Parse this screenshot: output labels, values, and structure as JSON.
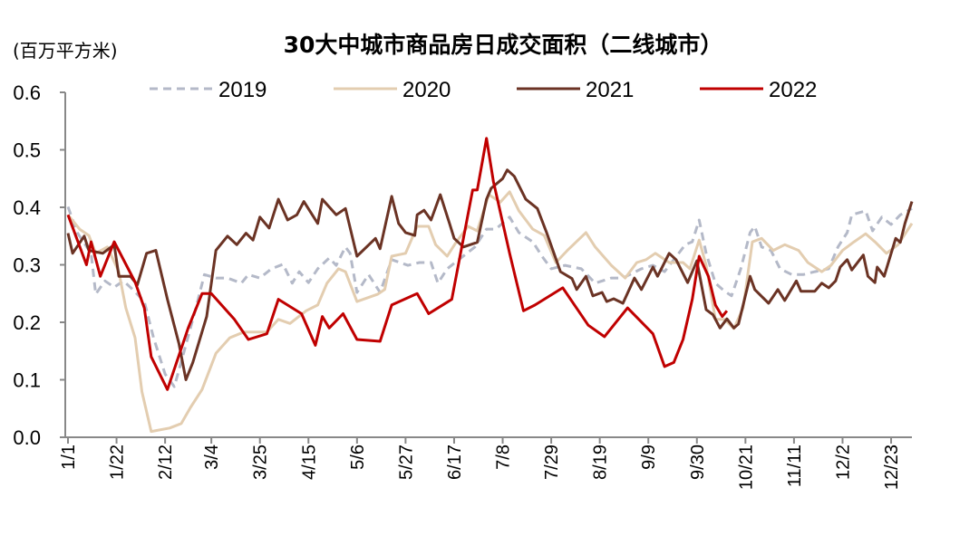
{
  "chart_data": {
    "type": "line",
    "title": "30大中城市商品房日成交面积（二线城市）",
    "ylabel": "(百万平方米)",
    "xlabel": "",
    "ylim": [
      0,
      0.6
    ],
    "xlim_day_of_year": [
      0,
      365
    ],
    "yticks": [
      "0.0",
      "0.1",
      "0.2",
      "0.3",
      "0.4",
      "0.5",
      "0.6"
    ],
    "ytick_values": [
      0,
      0.1,
      0.2,
      0.3,
      0.4,
      0.5,
      0.6
    ],
    "xticks": [
      "1/1",
      "1/22",
      "2/12",
      "3/4",
      "3/25",
      "4/15",
      "5/6",
      "5/27",
      "6/17",
      "7/8",
      "7/29",
      "8/19",
      "9/9",
      "9/30",
      "10/21",
      "11/11",
      "12/2",
      "12/23"
    ],
    "xtick_days": [
      0,
      21,
      42,
      62,
      83,
      104,
      125,
      146,
      167,
      188,
      209,
      230,
      251,
      272,
      293,
      314,
      335,
      356
    ],
    "grid": false,
    "legend_position": "top",
    "series": [
      {
        "name": "2019",
        "color": "#B4B9C8",
        "dashed": true,
        "points": [
          [
            0,
            0.401
          ],
          [
            4,
            0.356
          ],
          [
            10,
            0.32
          ],
          [
            12,
            0.249
          ],
          [
            16,
            0.272
          ],
          [
            20,
            0.261
          ],
          [
            24,
            0.272
          ],
          [
            28,
            0.257
          ],
          [
            33,
            0.236
          ],
          [
            37,
            0.173
          ],
          [
            42,
            0.11
          ],
          [
            46,
            0.088
          ],
          [
            50,
            0.146
          ],
          [
            55,
            0.22
          ],
          [
            59,
            0.283
          ],
          [
            64,
            0.277
          ],
          [
            69,
            0.277
          ],
          [
            75,
            0.268
          ],
          [
            78,
            0.283
          ],
          [
            83,
            0.277
          ],
          [
            88,
            0.293
          ],
          [
            93,
            0.301
          ],
          [
            97,
            0.268
          ],
          [
            100,
            0.288
          ],
          [
            104,
            0.269
          ],
          [
            108,
            0.293
          ],
          [
            113,
            0.312
          ],
          [
            116,
            0.299
          ],
          [
            120,
            0.331
          ],
          [
            122,
            0.32
          ],
          [
            125,
            0.252
          ],
          [
            130,
            0.283
          ],
          [
            135,
            0.252
          ],
          [
            140,
            0.309
          ],
          [
            147,
            0.299
          ],
          [
            152,
            0.304
          ],
          [
            157,
            0.304
          ],
          [
            160,
            0.268
          ],
          [
            164,
            0.293
          ],
          [
            169,
            0.309
          ],
          [
            176,
            0.331
          ],
          [
            181,
            0.362
          ],
          [
            185,
            0.362
          ],
          [
            191,
            0.383
          ],
          [
            195,
            0.356
          ],
          [
            201,
            0.34
          ],
          [
            205,
            0.315
          ],
          [
            209,
            0.293
          ],
          [
            215,
            0.299
          ],
          [
            222,
            0.293
          ],
          [
            228,
            0.268
          ],
          [
            235,
            0.277
          ],
          [
            240,
            0.277
          ],
          [
            248,
            0.293
          ],
          [
            253,
            0.299
          ],
          [
            258,
            0.288
          ],
          [
            262,
            0.309
          ],
          [
            267,
            0.335
          ],
          [
            270,
            0.34
          ],
          [
            273,
            0.378
          ],
          [
            276,
            0.32
          ],
          [
            280,
            0.268
          ],
          [
            284,
            0.254
          ],
          [
            287,
            0.246
          ],
          [
            291,
            0.293
          ],
          [
            295,
            0.356
          ],
          [
            297,
            0.367
          ],
          [
            300,
            0.331
          ],
          [
            304,
            0.325
          ],
          [
            308,
            0.293
          ],
          [
            313,
            0.283
          ],
          [
            318,
            0.283
          ],
          [
            323,
            0.288
          ],
          [
            329,
            0.293
          ],
          [
            333,
            0.331
          ],
          [
            337,
            0.356
          ],
          [
            339,
            0.387
          ],
          [
            345,
            0.394
          ],
          [
            348,
            0.359
          ],
          [
            352,
            0.383
          ],
          [
            356,
            0.37
          ],
          [
            360,
            0.387
          ],
          [
            365,
            0.398
          ]
        ]
      },
      {
        "name": "2020",
        "color": "#E3CDB0",
        "dashed": false,
        "points": [
          [
            0,
            0.387
          ],
          [
            5,
            0.362
          ],
          [
            9,
            0.351
          ],
          [
            12,
            0.32
          ],
          [
            17,
            0.331
          ],
          [
            22,
            0.288
          ],
          [
            25,
            0.225
          ],
          [
            29,
            0.173
          ],
          [
            32,
            0.079
          ],
          [
            36,
            0.01
          ],
          [
            44,
            0.016
          ],
          [
            49,
            0.024
          ],
          [
            53,
            0.052
          ],
          [
            58,
            0.083
          ],
          [
            64,
            0.146
          ],
          [
            70,
            0.173
          ],
          [
            76,
            0.183
          ],
          [
            86,
            0.183
          ],
          [
            91,
            0.205
          ],
          [
            96,
            0.198
          ],
          [
            103,
            0.22
          ],
          [
            108,
            0.23
          ],
          [
            112,
            0.268
          ],
          [
            117,
            0.293
          ],
          [
            120,
            0.288
          ],
          [
            125,
            0.236
          ],
          [
            134,
            0.249
          ],
          [
            137,
            0.257
          ],
          [
            140,
            0.315
          ],
          [
            146,
            0.32
          ],
          [
            151,
            0.367
          ],
          [
            156,
            0.367
          ],
          [
            159,
            0.335
          ],
          [
            164,
            0.315
          ],
          [
            168,
            0.34
          ],
          [
            173,
            0.367
          ],
          [
            177,
            0.359
          ],
          [
            182,
            0.422
          ],
          [
            187,
            0.409
          ],
          [
            191,
            0.427
          ],
          [
            195,
            0.394
          ],
          [
            201,
            0.362
          ],
          [
            206,
            0.351
          ],
          [
            211,
            0.304
          ],
          [
            216,
            0.325
          ],
          [
            224,
            0.356
          ],
          [
            228,
            0.331
          ],
          [
            235,
            0.299
          ],
          [
            241,
            0.277
          ],
          [
            246,
            0.304
          ],
          [
            250,
            0.309
          ],
          [
            254,
            0.32
          ],
          [
            260,
            0.304
          ],
          [
            266,
            0.304
          ],
          [
            269,
            0.293
          ],
          [
            273,
            0.343
          ],
          [
            276,
            0.299
          ],
          [
            280,
            0.205
          ],
          [
            284,
            0.205
          ],
          [
            288,
            0.189
          ],
          [
            292,
            0.225
          ],
          [
            296,
            0.34
          ],
          [
            300,
            0.346
          ],
          [
            305,
            0.325
          ],
          [
            310,
            0.335
          ],
          [
            316,
            0.325
          ],
          [
            320,
            0.304
          ],
          [
            326,
            0.288
          ],
          [
            330,
            0.299
          ],
          [
            335,
            0.325
          ],
          [
            340,
            0.34
          ],
          [
            345,
            0.354
          ],
          [
            349,
            0.34
          ],
          [
            354,
            0.32
          ],
          [
            359,
            0.335
          ],
          [
            365,
            0.372
          ]
        ]
      },
      {
        "name": "2021",
        "color": "#6B3324",
        "dashed": false,
        "points": [
          [
            0,
            0.355
          ],
          [
            2,
            0.32
          ],
          [
            7,
            0.35
          ],
          [
            9,
            0.325
          ],
          [
            15,
            0.32
          ],
          [
            20,
            0.335
          ],
          [
            22,
            0.28
          ],
          [
            27,
            0.28
          ],
          [
            30,
            0.265
          ],
          [
            34,
            0.32
          ],
          [
            38,
            0.325
          ],
          [
            43,
            0.24
          ],
          [
            48,
            0.163
          ],
          [
            51,
            0.1
          ],
          [
            54,
            0.13
          ],
          [
            60,
            0.21
          ],
          [
            64,
            0.325
          ],
          [
            69,
            0.35
          ],
          [
            73,
            0.335
          ],
          [
            77,
            0.355
          ],
          [
            80,
            0.343
          ],
          [
            83,
            0.383
          ],
          [
            87,
            0.364
          ],
          [
            91,
            0.414
          ],
          [
            95,
            0.378
          ],
          [
            99,
            0.387
          ],
          [
            102,
            0.41
          ],
          [
            108,
            0.372
          ],
          [
            110,
            0.414
          ],
          [
            116,
            0.387
          ],
          [
            120,
            0.398
          ],
          [
            125,
            0.315
          ],
          [
            133,
            0.346
          ],
          [
            135,
            0.328
          ],
          [
            140,
            0.419
          ],
          [
            143,
            0.372
          ],
          [
            146,
            0.356
          ],
          [
            150,
            0.351
          ],
          [
            151,
            0.387
          ],
          [
            154,
            0.395
          ],
          [
            157,
            0.378
          ],
          [
            161,
            0.422
          ],
          [
            165,
            0.372
          ],
          [
            167,
            0.346
          ],
          [
            171,
            0.331
          ],
          [
            177,
            0.339
          ],
          [
            181,
            0.414
          ],
          [
            183,
            0.433
          ],
          [
            188,
            0.45
          ],
          [
            190,
            0.465
          ],
          [
            193,
            0.454
          ],
          [
            198,
            0.414
          ],
          [
            203,
            0.398
          ],
          [
            207,
            0.356
          ],
          [
            213,
            0.288
          ],
          [
            218,
            0.276
          ],
          [
            220,
            0.257
          ],
          [
            224,
            0.28
          ],
          [
            227,
            0.246
          ],
          [
            231,
            0.252
          ],
          [
            233,
            0.236
          ],
          [
            236,
            0.241
          ],
          [
            240,
            0.233
          ],
          [
            245,
            0.277
          ],
          [
            248,
            0.257
          ],
          [
            253,
            0.296
          ],
          [
            255,
            0.28
          ],
          [
            260,
            0.32
          ],
          [
            263,
            0.309
          ],
          [
            268,
            0.269
          ],
          [
            272,
            0.307
          ],
          [
            276,
            0.222
          ],
          [
            279,
            0.213
          ],
          [
            282,
            0.19
          ],
          [
            285,
            0.206
          ],
          [
            288,
            0.19
          ],
          [
            290,
            0.197
          ],
          [
            295,
            0.28
          ],
          [
            297,
            0.257
          ],
          [
            303,
            0.233
          ],
          [
            307,
            0.257
          ],
          [
            310,
            0.238
          ],
          [
            315,
            0.272
          ],
          [
            317,
            0.254
          ],
          [
            323,
            0.254
          ],
          [
            326,
            0.268
          ],
          [
            329,
            0.26
          ],
          [
            332,
            0.272
          ],
          [
            334,
            0.296
          ],
          [
            337,
            0.309
          ],
          [
            339,
            0.291
          ],
          [
            344,
            0.317
          ],
          [
            346,
            0.28
          ],
          [
            349,
            0.269
          ],
          [
            350,
            0.296
          ],
          [
            353,
            0.28
          ],
          [
            358,
            0.346
          ],
          [
            360,
            0.339
          ],
          [
            362,
            0.372
          ],
          [
            365,
            0.41
          ]
        ]
      },
      {
        "name": "2022",
        "color": "#C00000",
        "dashed": false,
        "points": [
          [
            0,
            0.387
          ],
          [
            8,
            0.3
          ],
          [
            10,
            0.34
          ],
          [
            14,
            0.28
          ],
          [
            20,
            0.34
          ],
          [
            29,
            0.27
          ],
          [
            33,
            0.225
          ],
          [
            36,
            0.14
          ],
          [
            43,
            0.083
          ],
          [
            52,
            0.19
          ],
          [
            58,
            0.25
          ],
          [
            62,
            0.25
          ],
          [
            72,
            0.205
          ],
          [
            78,
            0.17
          ],
          [
            86,
            0.18
          ],
          [
            91,
            0.24
          ],
          [
            101,
            0.215
          ],
          [
            107,
            0.16
          ],
          [
            110,
            0.21
          ],
          [
            113,
            0.19
          ],
          [
            119,
            0.215
          ],
          [
            125,
            0.17
          ],
          [
            135,
            0.167
          ],
          [
            140,
            0.23
          ],
          [
            151,
            0.25
          ],
          [
            156,
            0.215
          ],
          [
            164,
            0.235
          ],
          [
            166,
            0.24
          ],
          [
            175,
            0.43
          ],
          [
            177,
            0.43
          ],
          [
            181,
            0.52
          ],
          [
            184,
            0.445
          ],
          [
            191,
            0.32
          ],
          [
            197,
            0.22
          ],
          [
            202,
            0.23
          ],
          [
            214,
            0.26
          ],
          [
            225,
            0.195
          ],
          [
            232,
            0.175
          ],
          [
            242,
            0.225
          ],
          [
            253,
            0.18
          ],
          [
            258,
            0.123
          ],
          [
            262,
            0.13
          ],
          [
            266,
            0.17
          ],
          [
            270,
            0.24
          ],
          [
            273,
            0.315
          ],
          [
            277,
            0.28
          ],
          [
            280,
            0.23
          ],
          [
            283,
            0.21
          ],
          [
            285,
            0.22
          ]
        ]
      }
    ]
  }
}
